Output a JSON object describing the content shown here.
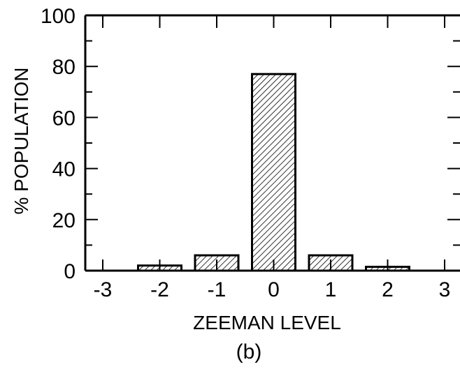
{
  "chart_data": {
    "type": "bar",
    "categories": [
      "-3",
      "-2",
      "-1",
      "0",
      "1",
      "2",
      "3"
    ],
    "values": [
      0,
      2,
      6,
      77,
      6,
      1.5,
      0
    ],
    "xlabel": "ZEEMAN LEVEL",
    "ylabel": "% POPULATION",
    "ylim": [
      0,
      100
    ],
    "yticks": [
      "0",
      "20",
      "40",
      "60",
      "80",
      "100"
    ],
    "caption": "(b)",
    "grid": false,
    "bar_fill": "hatched",
    "bar_color": "#000000"
  }
}
